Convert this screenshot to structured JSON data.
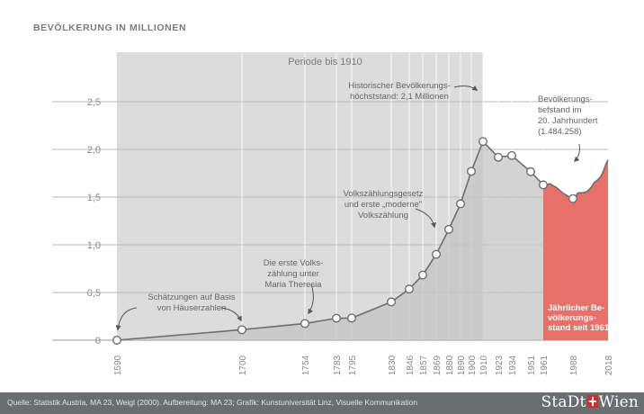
{
  "chart_data": {
    "type": "area",
    "title": "BEVÖLKERUNG IN MILLIONEN",
    "ylim": [
      0,
      2.5
    ],
    "xlim": [
      1590,
      2018
    ],
    "yticks": [
      {
        "value": 0,
        "label": "0"
      },
      {
        "value": 0.5,
        "label": "0,5"
      },
      {
        "value": 1.0,
        "label": "1,0"
      },
      {
        "value": 1.5,
        "label": "1,5"
      },
      {
        "value": 2.0,
        "label": "2,0"
      },
      {
        "value": 2.5,
        "label": "2,5"
      }
    ],
    "xticks": [
      1590,
      1700,
      1754,
      1783,
      1795,
      1830,
      1846,
      1857,
      1869,
      1880,
      1890,
      1900,
      1910,
      1923,
      1934,
      1951,
      1961,
      1988,
      2018
    ],
    "points": [
      {
        "x": 1590,
        "y": 0.0
      },
      {
        "x": 1700,
        "y": 0.11
      },
      {
        "x": 1754,
        "y": 0.175
      },
      {
        "x": 1783,
        "y": 0.23
      },
      {
        "x": 1795,
        "y": 0.232
      },
      {
        "x": 1830,
        "y": 0.401
      },
      {
        "x": 1846,
        "y": 0.536
      },
      {
        "x": 1857,
        "y": 0.683
      },
      {
        "x": 1869,
        "y": 0.9
      },
      {
        "x": 1880,
        "y": 1.162
      },
      {
        "x": 1890,
        "y": 1.43
      },
      {
        "x": 1900,
        "y": 1.77
      },
      {
        "x": 1910,
        "y": 2.083
      },
      {
        "x": 1923,
        "y": 1.918
      },
      {
        "x": 1934,
        "y": 1.935
      },
      {
        "x": 1951,
        "y": 1.766
      },
      {
        "x": 1961,
        "y": 1.628
      }
    ],
    "annual_series": [
      {
        "x": 1961,
        "y": 1.628
      },
      {
        "x": 1964,
        "y": 1.63
      },
      {
        "x": 1967,
        "y": 1.64
      },
      {
        "x": 1970,
        "y": 1.62
      },
      {
        "x": 1973,
        "y": 1.6
      },
      {
        "x": 1976,
        "y": 1.57
      },
      {
        "x": 1979,
        "y": 1.54
      },
      {
        "x": 1982,
        "y": 1.52
      },
      {
        "x": 1985,
        "y": 1.5
      },
      {
        "x": 1987,
        "y": 1.485
      },
      {
        "x": 1988,
        "y": 1.484
      },
      {
        "x": 1990,
        "y": 1.5
      },
      {
        "x": 1992,
        "y": 1.54
      },
      {
        "x": 1994,
        "y": 1.545
      },
      {
        "x": 1996,
        "y": 1.545
      },
      {
        "x": 1998,
        "y": 1.55
      },
      {
        "x": 2000,
        "y": 1.56
      },
      {
        "x": 2002,
        "y": 1.58
      },
      {
        "x": 2004,
        "y": 1.61
      },
      {
        "x": 2006,
        "y": 1.65
      },
      {
        "x": 2008,
        "y": 1.67
      },
      {
        "x": 2010,
        "y": 1.69
      },
      {
        "x": 2012,
        "y": 1.72
      },
      {
        "x": 2014,
        "y": 1.77
      },
      {
        "x": 2016,
        "y": 1.84
      },
      {
        "x": 2018,
        "y": 1.89
      }
    ],
    "highlight": {
      "x": 1988,
      "y": 1.484
    },
    "period_label": "Periode bis 1910",
    "period_end": 1910,
    "annotations": [
      {
        "id": "estimates",
        "lines": [
          "Schätzungen auf Basis",
          "von Häuserzahlen"
        ]
      },
      {
        "id": "first-census",
        "lines": [
          "Die erste Volks-",
          "zählung unter",
          "Maria Theresia"
        ]
      },
      {
        "id": "modern-census",
        "lines": [
          "Volkszählungsgesetz",
          "und erste „moderne\"",
          "Volkszählung"
        ]
      },
      {
        "id": "peak",
        "lines": [
          "Historischer Bevölkerungs-",
          "höchststand: 2,1 Millionen"
        ]
      },
      {
        "id": "low",
        "lines": [
          "Bevölkerungs-",
          "tiefstand im",
          "20. Jahrhundert",
          "(1.484.258)"
        ]
      },
      {
        "id": "annual",
        "lines": [
          "Jährlicher Be-",
          "völkerungs-",
          "stand seit 1961"
        ]
      }
    ],
    "colors": {
      "period_band": "#dcdcdc",
      "area": "#c4c4c4",
      "line": "#6e6e6e",
      "annual_area": "#e8706a",
      "grid": "#b9b9b9",
      "text": "#666666"
    }
  },
  "footer": {
    "source": "Quelle: Statistik Austria, MA 23, Weigl (2000). Aufbereitung: MA 23; Grafik: Kunstuniversität Linz, Visuelle Kommunikation",
    "logo_left": "StaDt",
    "logo_right": "Wien"
  }
}
